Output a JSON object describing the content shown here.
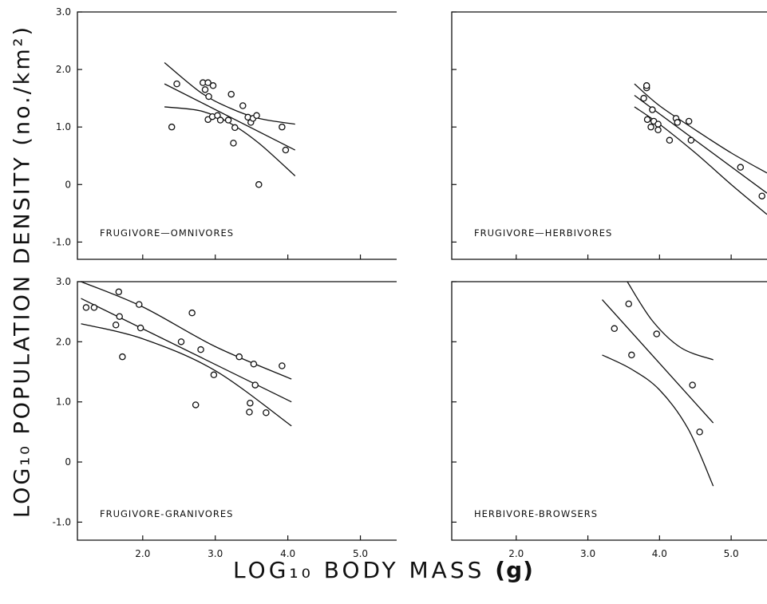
{
  "figure": {
    "ylabel": "LOG₁₀ POPULATION DENSITY (no./km²)",
    "xlabel_main": "LOG₁₀ BODY MASS",
    "xlabel_unit": "(g)"
  },
  "chart_data": [
    {
      "type": "scatter",
      "title": "FRUGIVORE—OMNIVORES",
      "xlim": [
        1.1,
        5.5
      ],
      "ylim": [
        -1.3,
        3.0
      ],
      "yticks": [
        3.0,
        2.0,
        1.0,
        0,
        -1.0
      ],
      "yticklabels": [
        "3.0",
        "2.0",
        "1.0",
        "0",
        "-1.0"
      ],
      "xticks": [
        2.0,
        3.0,
        4.0,
        5.0
      ],
      "xticklabels": [
        "2.0",
        "3.0",
        "4.0",
        "5.0"
      ],
      "show_xticklabels": false,
      "show_yticklabels": true,
      "points": [
        [
          2.4,
          1.0
        ],
        [
          2.47,
          1.75
        ],
        [
          2.83,
          1.77
        ],
        [
          2.86,
          1.65
        ],
        [
          2.9,
          1.77
        ],
        [
          2.91,
          1.53
        ],
        [
          2.97,
          1.72
        ],
        [
          2.9,
          1.13
        ],
        [
          2.96,
          1.18
        ],
        [
          3.03,
          1.2
        ],
        [
          3.07,
          1.12
        ],
        [
          3.18,
          1.12
        ],
        [
          3.22,
          1.57
        ],
        [
          3.25,
          0.72
        ],
        [
          3.27,
          0.99
        ],
        [
          3.38,
          1.37
        ],
        [
          3.45,
          1.17
        ],
        [
          3.49,
          1.08
        ],
        [
          3.52,
          1.15
        ],
        [
          3.57,
          1.2
        ],
        [
          3.6,
          0.0
        ],
        [
          3.92,
          1.0
        ],
        [
          3.97,
          0.6
        ]
      ],
      "fit": {
        "x": [
          2.3,
          4.1
        ],
        "y": [
          1.75,
          0.6
        ]
      },
      "ci_upper": {
        "x": [
          2.3,
          2.8,
          3.2,
          3.6,
          4.1
        ],
        "y": [
          2.12,
          1.6,
          1.33,
          1.15,
          1.05
        ]
      },
      "ci_lower": {
        "x": [
          2.3,
          2.8,
          3.2,
          3.6,
          4.1
        ],
        "y": [
          1.35,
          1.28,
          1.07,
          0.72,
          0.15
        ]
      }
    },
    {
      "type": "scatter",
      "title": "FRUGIVORE—HERBIVORES",
      "xlim": [
        1.1,
        5.5
      ],
      "ylim": [
        -1.3,
        3.0
      ],
      "yticks": [
        3.0,
        2.0,
        1.0,
        0,
        -1.0
      ],
      "yticklabels": [
        "3.0",
        "2.0",
        "1.0",
        "0",
        "-1.0"
      ],
      "xticks": [
        2.0,
        3.0,
        4.0,
        5.0
      ],
      "xticklabels": [
        "2.0",
        "3.0",
        "4.0",
        "5.0"
      ],
      "show_xticklabels": false,
      "show_yticklabels": false,
      "points": [
        [
          3.78,
          1.5
        ],
        [
          3.82,
          1.68
        ],
        [
          3.82,
          1.72
        ],
        [
          3.83,
          1.13
        ],
        [
          3.88,
          1.0
        ],
        [
          3.9,
          1.3
        ],
        [
          3.92,
          1.1
        ],
        [
          3.98,
          0.95
        ],
        [
          3.98,
          1.05
        ],
        [
          4.14,
          0.77
        ],
        [
          4.23,
          1.15
        ],
        [
          4.25,
          1.08
        ],
        [
          4.41,
          1.1
        ],
        [
          4.44,
          0.77
        ],
        [
          5.13,
          0.3
        ],
        [
          5.43,
          -0.2
        ]
      ],
      "fit": {
        "x": [
          3.65,
          5.5
        ],
        "y": [
          1.55,
          -0.15
        ]
      },
      "ci_upper": {
        "x": [
          3.65,
          4.0,
          4.5,
          5.0,
          5.5
        ],
        "y": [
          1.75,
          1.37,
          0.95,
          0.55,
          0.2
        ]
      },
      "ci_lower": {
        "x": [
          3.65,
          4.0,
          4.5,
          5.0,
          5.5
        ],
        "y": [
          1.35,
          1.05,
          0.55,
          0.0,
          -0.52
        ]
      }
    },
    {
      "type": "scatter",
      "title": "FRUGIVORE-GRANIVORES",
      "xlim": [
        1.1,
        5.5
      ],
      "ylim": [
        -1.3,
        3.0
      ],
      "yticks": [
        3.0,
        2.0,
        1.0,
        0,
        -1.0
      ],
      "yticklabels": [
        "3.0",
        "2.0",
        "1.0",
        "0",
        "-1.0"
      ],
      "xticks": [
        2.0,
        3.0,
        4.0,
        5.0
      ],
      "xticklabels": [
        "2.0",
        "3.0",
        "4.0",
        "5.0"
      ],
      "show_xticklabels": true,
      "show_yticklabels": true,
      "points": [
        [
          1.22,
          2.57
        ],
        [
          1.33,
          2.57
        ],
        [
          1.63,
          2.28
        ],
        [
          1.67,
          2.83
        ],
        [
          1.68,
          2.42
        ],
        [
          1.72,
          1.75
        ],
        [
          1.95,
          2.62
        ],
        [
          1.97,
          2.23
        ],
        [
          2.53,
          2.0
        ],
        [
          2.68,
          2.48
        ],
        [
          2.73,
          0.95
        ],
        [
          2.8,
          1.87
        ],
        [
          2.98,
          1.45
        ],
        [
          3.33,
          1.75
        ],
        [
          3.47,
          0.83
        ],
        [
          3.48,
          0.98
        ],
        [
          3.53,
          1.63
        ],
        [
          3.55,
          1.28
        ],
        [
          3.7,
          0.82
        ],
        [
          3.92,
          1.6
        ]
      ],
      "fit": {
        "x": [
          1.15,
          4.05
        ],
        "y": [
          2.72,
          1.0
        ]
      },
      "ci_upper": {
        "x": [
          1.15,
          2.0,
          3.0,
          4.05
        ],
        "y": [
          3.0,
          2.58,
          1.92,
          1.38
        ]
      },
      "ci_lower": {
        "x": [
          1.15,
          2.0,
          3.0,
          4.05
        ],
        "y": [
          2.3,
          2.05,
          1.52,
          0.6
        ]
      }
    },
    {
      "type": "scatter",
      "title": "HERBIVORE-BROWSERS",
      "xlim": [
        1.1,
        5.5
      ],
      "ylim": [
        -1.3,
        3.0
      ],
      "yticks": [
        3.0,
        2.0,
        1.0,
        0,
        -1.0
      ],
      "yticklabels": [
        "3.0",
        "2.0",
        "1.0",
        "0",
        "-1.0"
      ],
      "xticks": [
        2.0,
        3.0,
        4.0,
        5.0
      ],
      "xticklabels": [
        "2.0",
        "3.0",
        "4.0",
        "5.0"
      ],
      "show_xticklabels": true,
      "show_yticklabels": false,
      "points": [
        [
          3.37,
          2.22
        ],
        [
          3.57,
          2.63
        ],
        [
          3.61,
          1.78
        ],
        [
          3.96,
          2.13
        ],
        [
          4.46,
          1.28
        ],
        [
          4.56,
          0.5
        ]
      ],
      "fit": {
        "x": [
          3.2,
          4.75
        ],
        "y": [
          2.7,
          0.65
        ]
      },
      "ci_upper": {
        "x": [
          3.55,
          3.9,
          4.3,
          4.75
        ],
        "y": [
          3.0,
          2.35,
          1.9,
          1.7
        ]
      },
      "ci_lower": {
        "x": [
          3.2,
          3.6,
          4.0,
          4.4,
          4.75
        ],
        "y": [
          1.78,
          1.55,
          1.2,
          0.55,
          -0.4
        ]
      }
    }
  ]
}
